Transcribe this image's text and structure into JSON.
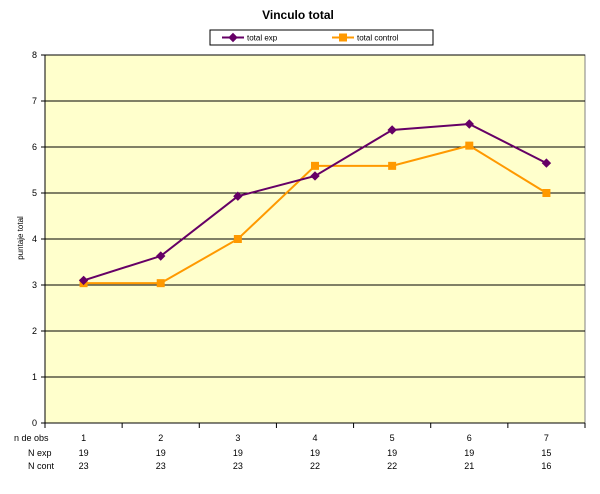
{
  "chart_data": {
    "type": "line",
    "title": "Vinculo total",
    "xlabel": "n de obs",
    "ylabel": "puntaje total",
    "categories": [
      "1",
      "2",
      "3",
      "4",
      "5",
      "6",
      "7"
    ],
    "ylim": [
      0,
      8
    ],
    "yticks": [
      0,
      1,
      2,
      3,
      4,
      5,
      6,
      7,
      8
    ],
    "grid": true,
    "legend_position": "top",
    "series": [
      {
        "name": "total exp",
        "color": "#660066",
        "marker": "diamond",
        "values": [
          3.1,
          3.63,
          4.93,
          5.37,
          6.37,
          6.5,
          5.65
        ]
      },
      {
        "name": "total control",
        "color": "#FF9900",
        "marker": "square",
        "values": [
          3.04,
          3.04,
          4.0,
          5.59,
          5.59,
          6.03,
          5.0
        ]
      }
    ],
    "table": [
      {
        "label": "N  exp",
        "values": [
          "19",
          "19",
          "19",
          "19",
          "19",
          "19",
          "15"
        ]
      },
      {
        "label": "N cont",
        "values": [
          "23",
          "23",
          "23",
          "22",
          "22",
          "21",
          "16"
        ]
      }
    ],
    "plot_background": "#FFFFCC"
  }
}
